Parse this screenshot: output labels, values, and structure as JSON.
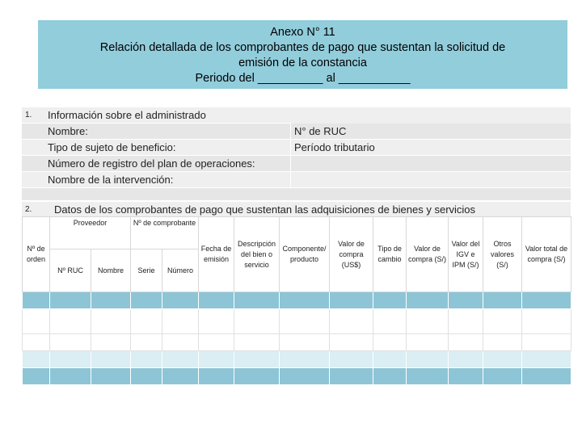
{
  "header": {
    "lines": [
      "Anexo N° 11",
      "Relación detallada de los comprobantes de pago que sustentan la solicitud de",
      "emisión de la constancia",
      "Periodo del __________ al ___________"
    ]
  },
  "section1": {
    "number": "1.",
    "title": "Información sobre el administrado",
    "fields_left": [
      "Nombre:",
      "Tipo de sujeto de beneficio:",
      "Número de registro del plan de operaciones:",
      "Nombre de la intervención:"
    ],
    "fields_right": [
      "N° de RUC",
      "Período tributario"
    ]
  },
  "section2": {
    "number": "2.",
    "title": "Datos de los comprobantes de pago que sustentan las adquisiciones de bienes y servicios"
  },
  "table": {
    "group_headers": [
      "Proveedor",
      "Nº de comprobante"
    ],
    "columns": [
      "Nº de orden",
      "Nº RUC",
      "Nombre",
      "Serie",
      "Número",
      "Fecha de emisión",
      "Descripción del bien o servicio",
      "Componente/ producto",
      "Valor de compra (US$)",
      "Tipo de cambio",
      "Valor de compra (S/)",
      "Valor del IGV e IPM (S/)",
      "Otros valores (S/)",
      "Valor total de compra (S/)"
    ]
  }
}
